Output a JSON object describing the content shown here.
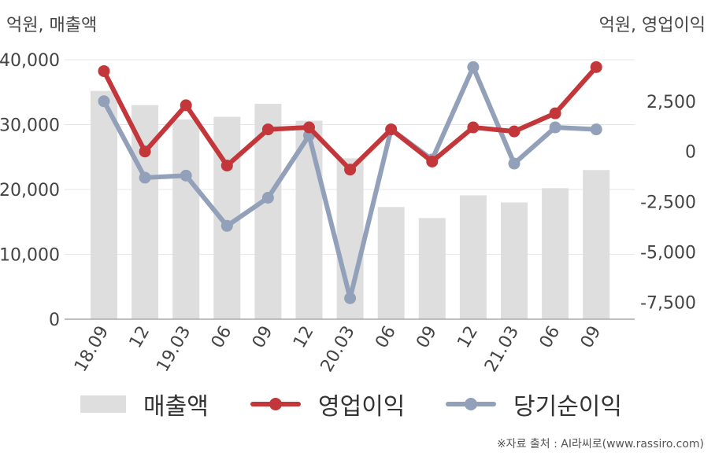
{
  "units": {
    "left": "억원, 매출액",
    "right": "억원, 영업이익"
  },
  "legend": {
    "revenue": "매출액",
    "op_income": "영업이익",
    "net_income": "당기순이익"
  },
  "source": "※자료 출처 : AI라씨로(www.rassiro.com)",
  "colors": {
    "revenue": "#dedede",
    "op_income": "#c3363a",
    "net_income": "#92a0b9",
    "axis_text": "#444444",
    "grid": "#e6e6e6"
  },
  "chart_data": {
    "type": "bar",
    "categories": [
      "18.09",
      "12",
      "19.03",
      "06",
      "09",
      "12",
      "20.03",
      "06",
      "09",
      "12",
      "21.03",
      "06",
      "09"
    ],
    "y_left": {
      "ticks": [
        "0",
        "10,000",
        "20,000",
        "30,000",
        "40,000"
      ],
      "tick_values": [
        0,
        10000,
        20000,
        30000,
        40000
      ],
      "ylim": [
        0,
        40000
      ]
    },
    "y_right": {
      "ticks": [
        "2,500",
        "0",
        "-2,500",
        "-5,000",
        "-7,500"
      ],
      "tick_values": [
        2500,
        0,
        -2500,
        -5000,
        -7500
      ],
      "ylim": [
        -8500,
        4800
      ]
    },
    "series": [
      {
        "name": "매출액",
        "type": "bar",
        "axis": "left",
        "values": [
          35200,
          33000,
          30800,
          31200,
          33200,
          30600,
          24800,
          17300,
          15600,
          19100,
          18000,
          20200,
          23000
        ]
      },
      {
        "name": "영업이익",
        "type": "line",
        "axis": "right",
        "values": [
          4000,
          0,
          2300,
          -700,
          1100,
          1200,
          -900,
          1100,
          -500,
          1200,
          1000,
          1900,
          4200
        ]
      },
      {
        "name": "당기순이익",
        "type": "line",
        "axis": "right",
        "values": [
          2500,
          -1300,
          -1200,
          -3700,
          -2300,
          800,
          -7300,
          1100,
          -400,
          4200,
          -600,
          1200,
          1100
        ]
      }
    ]
  }
}
